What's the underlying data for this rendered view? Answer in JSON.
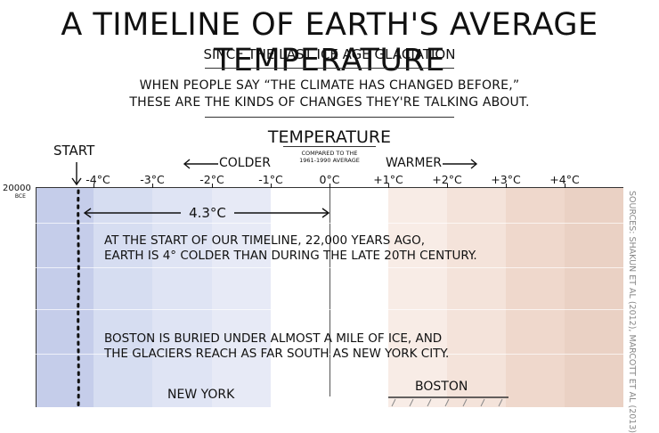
{
  "header": {
    "title": "A TIMELINE OF EARTH'S AVERAGE TEMPERATURE",
    "subtitle": "SINCE THE LAST ICE AGE GLACIATION",
    "quote_line1": "WHEN PEOPLE SAY “THE CLIMATE HAS CHANGED BEFORE,”",
    "quote_line2": "THESE ARE THE KINDS OF CHANGES THEY'RE TALKING ABOUT."
  },
  "axis": {
    "heading": "TEMPERATURE",
    "subheading_line1": "COMPARED TO THE",
    "subheading_line2": "1961-1990 AVERAGE",
    "colder_label": "COLDER",
    "warmer_label": "WARMER",
    "start_label": "START",
    "ticks": [
      "-4°C",
      "-3°C",
      "-2°C",
      "-1°C",
      "0°C",
      "+1°C",
      "+2°C",
      "+3°C",
      "+4°C"
    ]
  },
  "timeline": {
    "start_year": "20000",
    "start_era": "BCE",
    "difference_label": "4.3°C",
    "note1_line1": "AT THE START OF OUR TIMELINE, 22,000 YEARS AGO,",
    "note1_line2": "EARTH IS 4° COLDER THAN DURING THE LATE 20TH CENTURY.",
    "note2_line1": "BOSTON IS BURIED UNDER ALMOST A MILE OF ICE, AND",
    "note2_line2": "THE GLACIERS REACH AS FAR SOUTH AS NEW YORK CITY.",
    "new_york_label": "NEW YORK",
    "boston_label": "BOSTON",
    "sources": "SOURCES: SHAKUN ET AL (2012), MARCOTT ET AL (2013)"
  },
  "colors": {
    "cold_1": "#c5cdea",
    "cold_2": "#d6ddf1",
    "cold_3": "#dfe4f4",
    "cold_4": "#e7eaf6",
    "cold_5": "#eef0f9",
    "warm_1": "#f8ece6",
    "warm_2": "#f4e3da",
    "warm_3": "#efd8cc",
    "warm_4": "#ead1c4"
  }
}
